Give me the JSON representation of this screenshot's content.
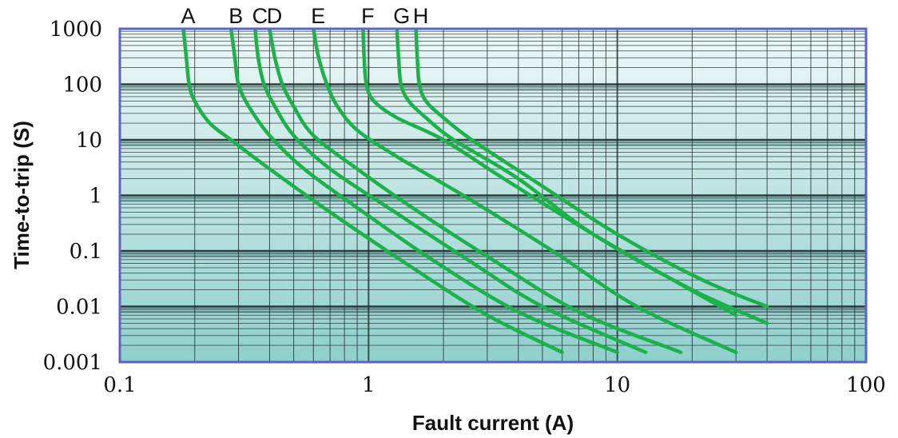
{
  "chart_data": {
    "type": "line",
    "title": "",
    "xlabel": "Fault current (A)",
    "ylabel": "Time-to-trip (S)",
    "x_scale": "log",
    "y_scale": "log",
    "xlim": [
      0.1,
      100
    ],
    "ylim": [
      0.001,
      1000
    ],
    "x_ticks": [
      "0.1",
      "1",
      "10",
      "100"
    ],
    "y_ticks": [
      "1000",
      "100",
      "10",
      "1",
      "0.1",
      "0.01",
      "0.001"
    ],
    "grid": true,
    "curve_labels_position": "top",
    "colors": {
      "curve": "#1db14b",
      "plot_border": "#5a64c8",
      "gridline": "#1f2d2d",
      "band_top": "#eef8f8",
      "band_bottom": "#8fcfcc"
    },
    "series": [
      {
        "name": "A",
        "x": [
          0.18,
          0.185,
          0.19,
          0.2,
          0.23,
          0.28,
          0.4,
          0.7,
          1.5,
          3,
          6
        ],
        "y": [
          1000,
          300,
          100,
          50,
          20,
          10,
          3,
          0.5,
          0.05,
          0.007,
          0.0015
        ]
      },
      {
        "name": "B",
        "x": [
          0.28,
          0.29,
          0.3,
          0.33,
          0.4,
          0.55,
          0.9,
          1.8,
          4,
          10
        ],
        "y": [
          1000,
          300,
          100,
          40,
          12,
          3,
          0.6,
          0.07,
          0.008,
          0.0015
        ]
      },
      {
        "name": "C",
        "x": [
          0.35,
          0.36,
          0.38,
          0.42,
          0.5,
          0.7,
          1.2,
          2.5,
          5,
          13
        ],
        "y": [
          1000,
          300,
          100,
          40,
          12,
          3,
          0.6,
          0.07,
          0.01,
          0.0015
        ]
      },
      {
        "name": "D",
        "x": [
          0.4,
          0.42,
          0.45,
          0.5,
          0.6,
          0.9,
          1.5,
          3,
          7,
          18
        ],
        "y": [
          1000,
          300,
          100,
          40,
          12,
          3,
          0.6,
          0.08,
          0.008,
          0.0015
        ]
      },
      {
        "name": "E",
        "x": [
          0.6,
          0.63,
          0.68,
          0.75,
          0.9,
          1.3,
          2.5,
          5.5,
          12,
          30
        ],
        "y": [
          1000,
          300,
          100,
          40,
          15,
          5,
          0.9,
          0.1,
          0.01,
          0.0015
        ]
      },
      {
        "name": "F",
        "x": [
          0.95,
          0.96,
          0.98,
          1.05,
          1.3,
          2,
          3.5,
          8,
          18,
          30
        ],
        "y": [
          1000,
          300,
          100,
          50,
          25,
          10,
          2,
          0.2,
          0.025,
          0.007
        ]
      },
      {
        "name": "G",
        "x": [
          1.3,
          1.32,
          1.35,
          1.45,
          1.7,
          2.2,
          4,
          8,
          20,
          40
        ],
        "y": [
          1000,
          300,
          100,
          50,
          25,
          10,
          2,
          0.2,
          0.02,
          0.005
        ]
      },
      {
        "name": "H",
        "x": [
          1.55,
          1.57,
          1.6,
          1.7,
          2,
          2.6,
          4.5,
          10,
          22,
          40
        ],
        "y": [
          1000,
          300,
          100,
          50,
          25,
          10,
          2,
          0.2,
          0.03,
          0.01
        ]
      }
    ]
  }
}
